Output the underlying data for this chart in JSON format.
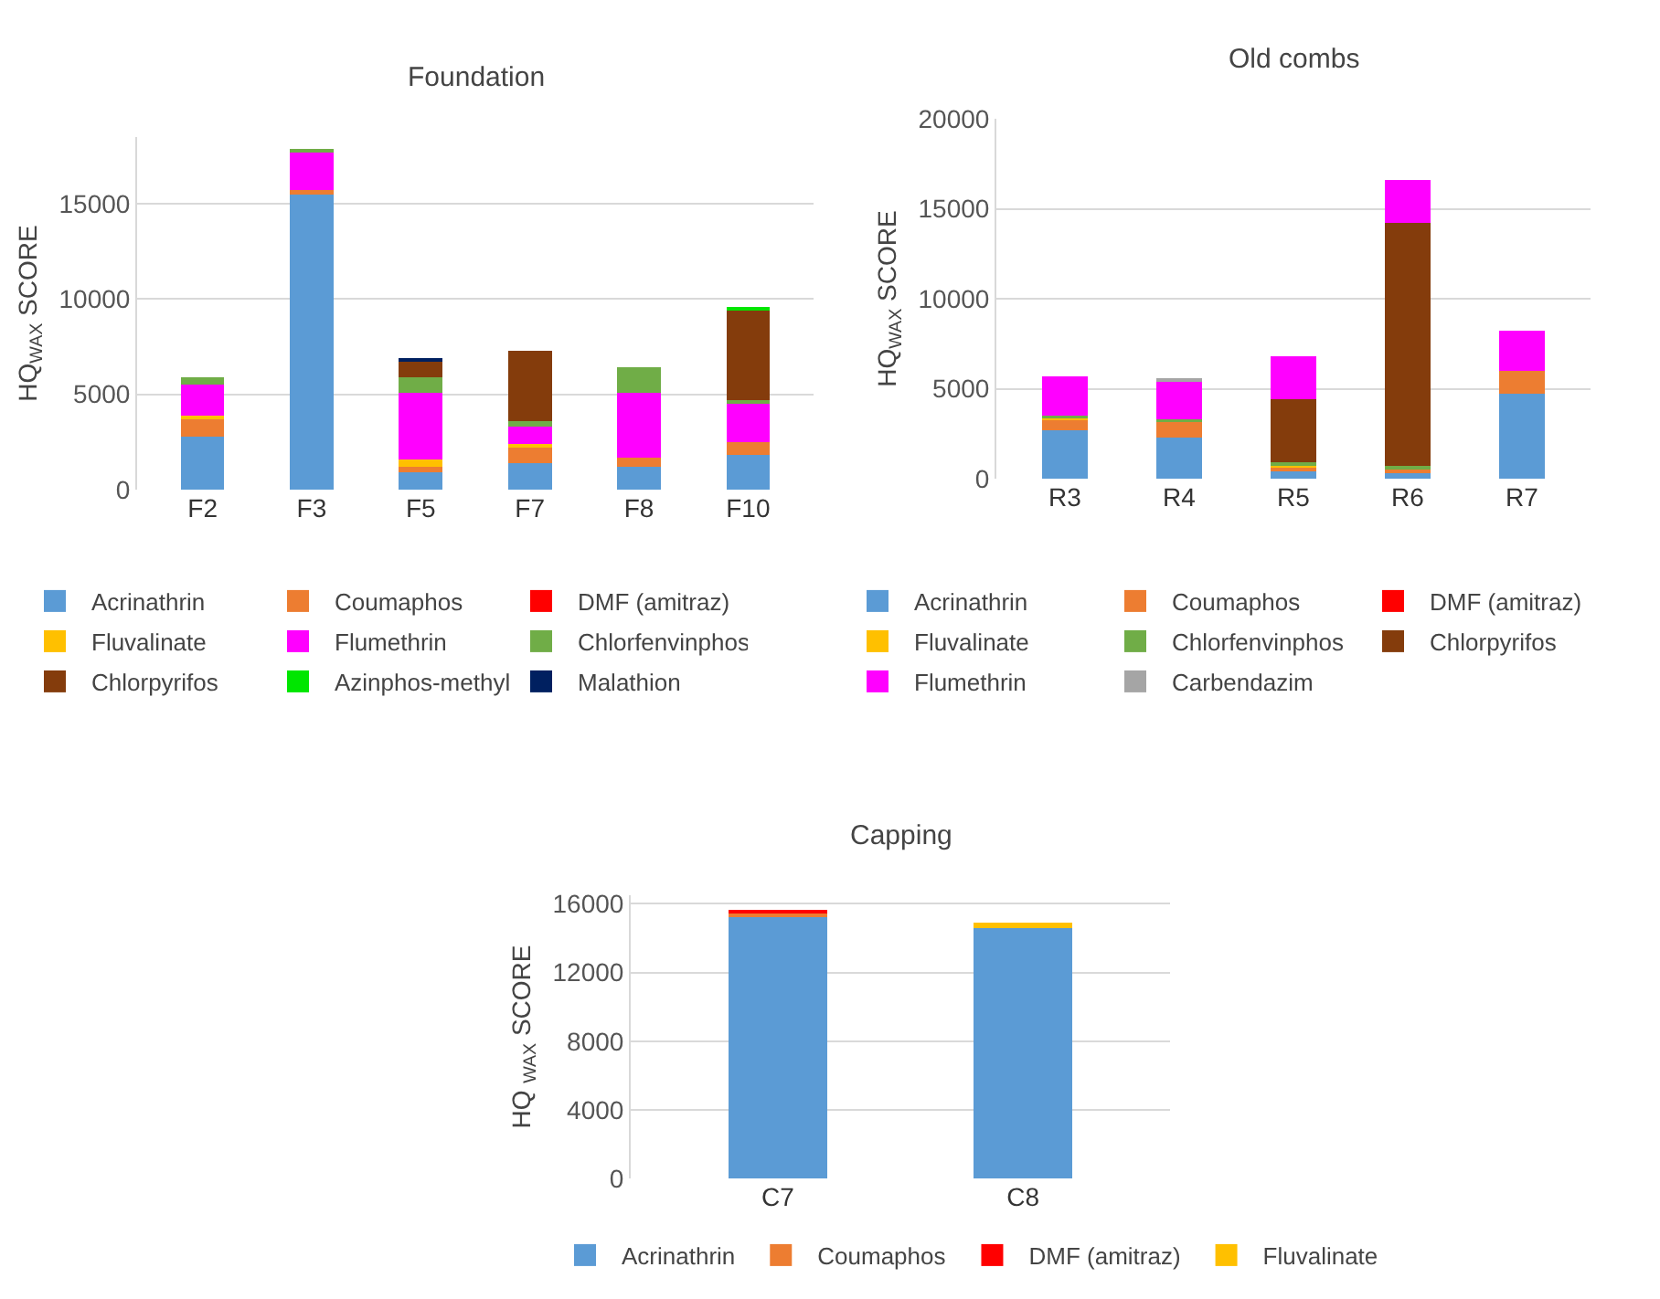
{
  "chart_data": [
    {
      "type": "bar",
      "title": "Foundation",
      "ylabel": "HQ$_{WAX}$ SCORE",
      "categories": [
        "F2",
        "F3",
        "F5",
        "F7",
        "F8",
        "F10"
      ],
      "stacked": true,
      "ylim": [
        0,
        18500
      ],
      "yticks": [
        0,
        5000,
        10000,
        15000
      ],
      "grid": "y",
      "legend": "bottom",
      "series": [
        {
          "name": "Acrinathrin",
          "color": "#5b9bd5",
          "values": [
            2800,
            15500,
            900,
            1400,
            1200,
            1800
          ]
        },
        {
          "name": "Coumaphos",
          "color": "#ed7d31",
          "values": [
            900,
            200,
            300,
            900,
            500,
            700
          ]
        },
        {
          "name": "DMF (amitraz)",
          "color": "#ff0000",
          "values": [
            null,
            null,
            null,
            null,
            null,
            null
          ]
        },
        {
          "name": "Fluvalinate",
          "color": "#ffc000",
          "values": [
            200,
            null,
            400,
            100,
            null,
            null
          ]
        },
        {
          "name": "Flumethrin",
          "color": "#ff00ff",
          "values": [
            1600,
            2000,
            3500,
            900,
            3400,
            2000
          ]
        },
        {
          "name": "Chlorfenvinphos",
          "color": "#70ad47",
          "values": [
            400,
            200,
            800,
            300,
            1300,
            200
          ]
        },
        {
          "name": "Chlorpyrifos",
          "color": "#843c0c",
          "values": [
            null,
            null,
            900,
            3700,
            null,
            4700
          ]
        },
        {
          "name": "Azinphos-methyl",
          "color": "#00e600",
          "values": [
            null,
            null,
            null,
            null,
            null,
            100
          ]
        },
        {
          "name": "Malathion",
          "color": "#002060",
          "values": [
            null,
            null,
            100,
            null,
            null,
            null
          ]
        }
      ]
    },
    {
      "type": "bar",
      "title": "Old combs",
      "ylabel": "HQ$_{WAX}$ SCORE",
      "categories": [
        "R3",
        "R4",
        "R5",
        "R6",
        "R7"
      ],
      "stacked": true,
      "ylim": [
        0,
        20000
      ],
      "yticks": [
        0,
        5000,
        10000,
        15000,
        20000
      ],
      "grid": "y",
      "legend": "bottom",
      "series": [
        {
          "name": "Acrinathrin",
          "color": "#5b9bd5",
          "values": [
            2700,
            2300,
            500,
            400,
            4700
          ]
        },
        {
          "name": "Coumaphos",
          "color": "#ed7d31",
          "values": [
            600,
            900,
            200,
            200,
            1300
          ]
        },
        {
          "name": "DMF (amitraz)",
          "color": "#ff0000",
          "values": [
            null,
            null,
            null,
            null,
            null
          ]
        },
        {
          "name": "Fluvalinate",
          "color": "#ffc000",
          "values": [
            100,
            null,
            100,
            null,
            null
          ]
        },
        {
          "name": "Chlorfenvinphos",
          "color": "#70ad47",
          "values": [
            100,
            100,
            100,
            100,
            null
          ]
        },
        {
          "name": "Chlorpyrifos",
          "color": "#843c0c",
          "values": [
            null,
            null,
            3500,
            13500,
            null
          ]
        },
        {
          "name": "Flumethrin",
          "color": "#ff00ff",
          "values": [
            2200,
            2100,
            2400,
            2400,
            2200
          ]
        },
        {
          "name": "Carbendazim",
          "color": "#a5a5a5",
          "values": [
            null,
            100,
            null,
            null,
            null
          ]
        }
      ]
    },
    {
      "type": "bar",
      "title": "Capping",
      "ylabel": "HQ $_{WAX}$ SCORE",
      "categories": [
        "C7",
        "C8"
      ],
      "stacked": true,
      "ylim": [
        0,
        16500
      ],
      "yticks": [
        0,
        4000,
        8000,
        12000,
        16000
      ],
      "grid": "y",
      "legend": "bottom",
      "series": [
        {
          "name": "Acrinathrin",
          "color": "#5b9bd5",
          "values": [
            15200,
            14600
          ]
        },
        {
          "name": "Coumaphos",
          "color": "#ed7d31",
          "values": [
            300,
            null
          ]
        },
        {
          "name": "DMF (amitraz)",
          "color": "#ff0000",
          "values": [
            100,
            null
          ]
        },
        {
          "name": "Fluvalinate",
          "color": "#ffc000",
          "values": [
            null,
            300
          ]
        }
      ]
    }
  ]
}
